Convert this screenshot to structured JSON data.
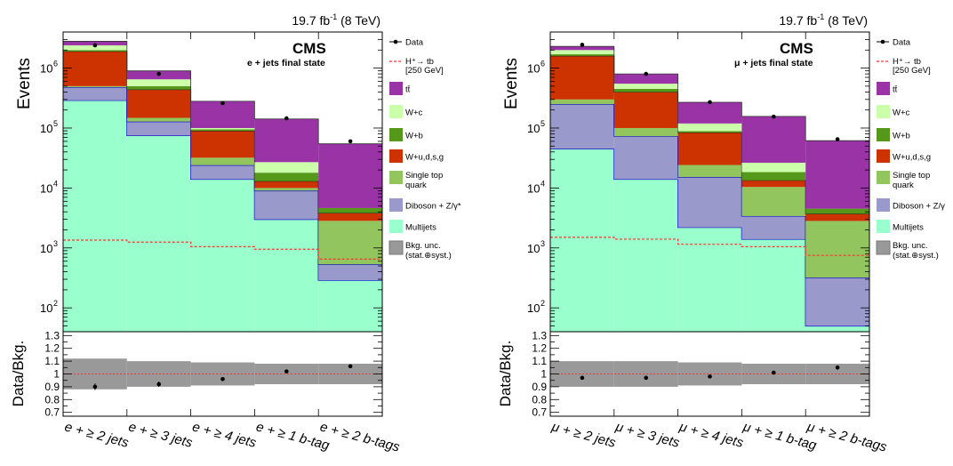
{
  "colors": {
    "ttbar": "#9933a6",
    "wc": "#ccffaa",
    "wb": "#55981a",
    "wlight": "#cc3300",
    "singletop": "#92c55d",
    "diboson": "#9999cc",
    "multijets": "#99ffcc",
    "unc": "#999999",
    "higgs": "#ff3333",
    "outline": "#0000cc"
  },
  "chart_data": [
    {
      "type": "bar",
      "stacked": true,
      "log_y": true,
      "lumi": "19.7 fb",
      "lumi_sup": "-1",
      "lumi_energy": "(8 TeV)",
      "experiment": "CMS",
      "final_state": "e + jets final state",
      "ylabel": "Events",
      "ratio_ylabel": "Data/Bkg.",
      "ylim": [
        40,
        4000000
      ],
      "ratio_ylim": [
        0.67,
        1.33
      ],
      "ratio_ticks": [
        "0.7",
        "0.8",
        "0.9",
        "1",
        "1.1",
        "1.2",
        "1.3"
      ],
      "y_ticks": [
        {
          "base": "10",
          "exp": "2",
          "value": 100
        },
        {
          "base": "10",
          "exp": "3",
          "value": 1000
        },
        {
          "base": "10",
          "exp": "4",
          "value": 10000
        },
        {
          "base": "10",
          "exp": "5",
          "value": 100000
        },
        {
          "base": "10",
          "exp": "6",
          "value": 1000000
        }
      ],
      "categories": [
        "e + ≥ 2 jets",
        "e + ≥ 3 jets",
        "e + ≥ 4 jets",
        "e +  ≥ 1 b-tag",
        "e + ≥ 2 b-tags"
      ],
      "legend": [
        {
          "key": "data",
          "label": "Data"
        },
        {
          "key": "higgs",
          "label": "H⁺→ tb",
          "label2": "[250 GeV]"
        },
        {
          "key": "ttbar",
          "label": "tt̄"
        },
        {
          "key": "wc",
          "label": "W+c"
        },
        {
          "key": "wb",
          "label": "W+b"
        },
        {
          "key": "wlight",
          "label": "W+u,d,s,g"
        },
        {
          "key": "singletop",
          "label": "Single top",
          "label2": "quark"
        },
        {
          "key": "diboson",
          "label": "Diboson + Z/γ*"
        },
        {
          "key": "multijets",
          "label": "Multijets"
        },
        {
          "key": "unc",
          "label": "Bkg. unc.",
          "label2": "(stat.⊕syst.)"
        }
      ],
      "series": [
        {
          "key": "multijets",
          "values": [
            290000,
            75000,
            14000,
            3000,
            290
          ]
        },
        {
          "key": "diboson",
          "values": [
            190000,
            53000,
            10000,
            6000,
            240
          ]
        },
        {
          "key": "singletop",
          "values": [
            20000,
            20000,
            8000,
            1000,
            2300
          ]
        },
        {
          "key": "wlight",
          "values": [
            1400000,
            292000,
            58000,
            3000,
            1000
          ]
        },
        {
          "key": "wb",
          "values": [
            100000,
            60000,
            5000,
            5000,
            800
          ]
        },
        {
          "key": "wc",
          "values": [
            400000,
            150000,
            5000,
            9000,
            0
          ]
        },
        {
          "key": "ttbar",
          "values": [
            400000,
            250000,
            180000,
            115000,
            50000
          ]
        }
      ],
      "data": [
        2400000,
        800000,
        260000,
        145000,
        60000
      ],
      "higgs": [
        1350,
        1250,
        1050,
        950,
        650
      ],
      "ratio": [
        0.9,
        0.92,
        0.96,
        1.02,
        1.06
      ],
      "ratio_err": [
        0.025,
        0.02,
        0.012,
        0.008,
        0.008
      ],
      "unc_band": [
        0.12,
        0.1,
        0.09,
        0.08,
        0.08
      ]
    },
    {
      "type": "bar",
      "stacked": true,
      "log_y": true,
      "lumi": "19.7 fb",
      "lumi_sup": "-1",
      "lumi_energy": "(8 TeV)",
      "experiment": "CMS",
      "final_state": "μ + jets final state",
      "ylabel": "Events",
      "ratio_ylabel": "Data/Bkg.",
      "ylim": [
        40,
        4000000
      ],
      "ratio_ylim": [
        0.67,
        1.33
      ],
      "ratio_ticks": [
        "0.7",
        "0.8",
        "0.9",
        "1",
        "1.1",
        "1.2",
        "1.3"
      ],
      "y_ticks": [
        {
          "base": "10",
          "exp": "2",
          "value": 100
        },
        {
          "base": "10",
          "exp": "3",
          "value": 1000
        },
        {
          "base": "10",
          "exp": "4",
          "value": 10000
        },
        {
          "base": "10",
          "exp": "5",
          "value": 100000
        },
        {
          "base": "10",
          "exp": "6",
          "value": 1000000
        }
      ],
      "categories": [
        "μ + ≥ 2 jets",
        "μ + ≥ 3 jets",
        "μ + ≥ 4 jets",
        "μ +  ≥ 1 b-tag",
        "μ + ≥ 2 b-tags"
      ],
      "legend": [
        {
          "key": "data",
          "label": "Data"
        },
        {
          "key": "higgs",
          "label": "H⁺→ tb",
          "label2": "[250 GeV]"
        },
        {
          "key": "ttbar",
          "label": "tt̄"
        },
        {
          "key": "wc",
          "label": "W+c"
        },
        {
          "key": "wb",
          "label": "W+b"
        },
        {
          "key": "wlight",
          "label": "W+u,d,s,g"
        },
        {
          "key": "singletop",
          "label": "Single top",
          "label2": "quark"
        },
        {
          "key": "diboson",
          "label": "Diboson + Z/γ"
        },
        {
          "key": "multijets",
          "label": "Multijets"
        },
        {
          "key": "unc",
          "label": "Bkg. unc.",
          "label2": "(stat.⊕syst.)"
        }
      ],
      "series": [
        {
          "key": "multijets",
          "values": [
            45000,
            14000,
            2200,
            1400,
            50
          ]
        },
        {
          "key": "diboson",
          "values": [
            205000,
            59000,
            13000,
            2000,
            270
          ]
        },
        {
          "key": "singletop",
          "values": [
            50000,
            27000,
            9000,
            7000,
            2500
          ]
        },
        {
          "key": "wlight",
          "values": [
            1300000,
            300000,
            60000,
            3000,
            900
          ]
        },
        {
          "key": "wb",
          "values": [
            100000,
            50000,
            5000,
            5000,
            800
          ]
        },
        {
          "key": "wc",
          "values": [
            300000,
            100000,
            30000,
            8000,
            0
          ]
        },
        {
          "key": "ttbar",
          "values": [
            300000,
            250000,
            150000,
            130000,
            57000
          ]
        }
      ],
      "data": [
        2450000,
        800000,
        270000,
        155000,
        65000
      ],
      "higgs": [
        1500,
        1400,
        1150,
        1050,
        750
      ],
      "ratio": [
        0.97,
        0.97,
        0.98,
        1.01,
        1.05
      ],
      "ratio_err": [
        0.012,
        0.008,
        0.008,
        0.006,
        0.006
      ],
      "unc_band": [
        0.1,
        0.1,
        0.09,
        0.08,
        0.08
      ]
    }
  ]
}
